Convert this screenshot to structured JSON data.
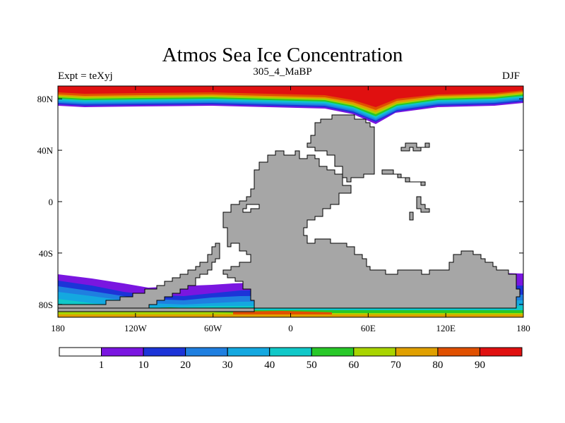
{
  "title": "Atmos Sea Ice Concentration",
  "left_string": "Expt = teXyj",
  "center_string": "305_4_MaBP",
  "right_string": "DJF",
  "map": {
    "projection": "cylindrical equidistant",
    "lon_range": [
      -180,
      180
    ],
    "lat_range": [
      -90,
      90
    ],
    "land_color": "#a6a6a6",
    "ocean_color": "#ffffff",
    "lon_labels": [
      {
        "lon": -180,
        "text": "180"
      },
      {
        "lon": -120,
        "text": "120W"
      },
      {
        "lon": -60,
        "text": "60W"
      },
      {
        "lon": 0,
        "text": "0"
      },
      {
        "lon": 60,
        "text": "60E"
      },
      {
        "lon": 120,
        "text": "120E"
      },
      {
        "lon": 180,
        "text": "180"
      }
    ],
    "lat_labels": [
      {
        "lat": 80,
        "text": "80N"
      },
      {
        "lat": 40,
        "text": "40N"
      },
      {
        "lat": 0,
        "text": "0"
      },
      {
        "lat": -40,
        "text": "40S"
      },
      {
        "lat": -80,
        "text": "80S"
      }
    ]
  },
  "colorbar": {
    "levels": [
      1,
      10,
      20,
      30,
      40,
      50,
      60,
      70,
      80,
      90
    ],
    "labels": [
      "1",
      "10",
      "20",
      "30",
      "40",
      "50",
      "60",
      "70",
      "80",
      "90"
    ],
    "colors": [
      "#ffffff",
      "#7a16e0",
      "#1c34d8",
      "#1f7fe0",
      "#14a8e0",
      "#10c8c8",
      "#28c828",
      "#a8d400",
      "#e0a000",
      "#e05000",
      "#e01010"
    ]
  }
}
